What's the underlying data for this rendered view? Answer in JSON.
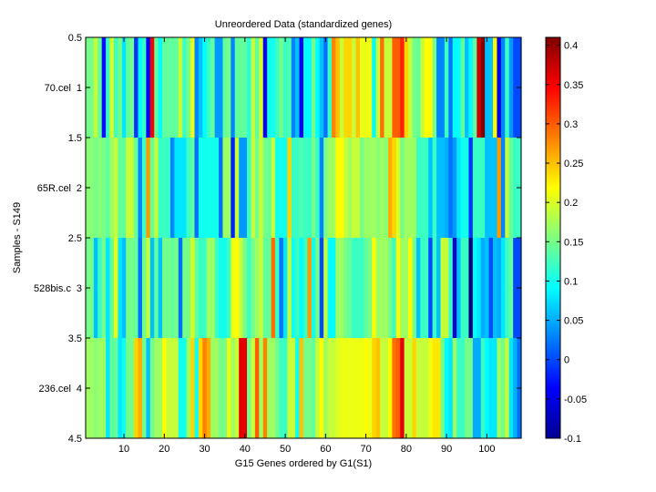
{
  "chart_data": {
    "type": "heatmap",
    "title": "Unreordered Data (standardized genes)",
    "xlabel": "G15 Genes ordered by G1(S1)",
    "ylabel": "Samples - S149",
    "xlim": [
      0.5,
      108.5
    ],
    "ylim": [
      0.5,
      4.5
    ],
    "x_ticks": [
      10,
      20,
      30,
      40,
      50,
      60,
      70,
      80,
      90,
      100
    ],
    "y_ticks": [
      "0.5",
      "1",
      "1.5",
      "2",
      "2.5",
      "3",
      "3.5",
      "4",
      "4.5"
    ],
    "y_tick_values": [
      0.5,
      1,
      1.5,
      2,
      2.5,
      3,
      3.5,
      4,
      4.5
    ],
    "row_labels": [
      "70.cel",
      "65R.cel",
      "528bis.c",
      "236.cel"
    ],
    "colormap": "jet",
    "clim": [
      -0.1,
      0.41
    ],
    "colorbar_ticks": [
      "-0.1",
      "-0.05",
      "0",
      "0.05",
      "0.1",
      "0.15",
      "0.2",
      "0.25",
      "0.3",
      "0.35",
      "0.4"
    ],
    "colorbar_tick_values": [
      -0.1,
      -0.05,
      0,
      0.05,
      0.1,
      0.15,
      0.2,
      0.25,
      0.3,
      0.35,
      0.4
    ],
    "values": [
      [
        0.15,
        0.15,
        0.19,
        0.14,
        -0.03,
        0.12,
        0.2,
        0.12,
        0.15,
        0.08,
        0.14,
        0.15,
        -0.01,
        0.09,
        0.12,
        -0.04,
        0.35,
        0.14,
        0.09,
        0.14,
        0.14,
        0.14,
        0.14,
        0.19,
        0.12,
        0.15,
        0.21,
        0.03,
        0.06,
        0.09,
        0.12,
        0.14,
        0.04,
        0.04,
        0.14,
        0.15,
        0.03,
        0.14,
        0.14,
        0.14,
        0.11,
        0.19,
        0.14,
        0.2,
        -0.04,
        0.1,
        0.1,
        0.12,
        0.15,
        0.12,
        0.13,
        0.03,
        0.06,
        -0.04,
        0.09,
        0.09,
        0.15,
        0.09,
        0.06,
        0.02,
        0.12,
        0.28,
        0.25,
        0.19,
        0.24,
        0.24,
        0.19,
        0.25,
        0.21,
        0.21,
        0.21,
        0.09,
        0.19,
        0.29,
        0.19,
        0.19,
        0.3,
        0.3,
        0.33,
        0.24,
        0.19,
        0.15,
        0.14,
        0.19,
        0.22,
        0.22,
        0.15,
        0.03,
        0.03,
        0.12,
        0.02,
        0.09,
        0.09,
        0.14,
        0.06,
        0.09,
        0.14,
        0.37,
        0.41,
        0.06,
        0.06,
        0.22,
        -0.05,
        0.03,
        0.12,
        0.04,
        0.0,
        0.0
      ],
      [
        0.16,
        0.16,
        0.15,
        0.16,
        0.15,
        0.14,
        0.17,
        0.19,
        0.14,
        0.14,
        0.19,
        0.19,
        0.14,
        0.03,
        0.12,
        0.27,
        0.14,
        0.19,
        0.12,
        0.12,
        0.12,
        0.03,
        0.08,
        0.08,
        0.08,
        0.12,
        0.14,
        0.02,
        0.1,
        0.1,
        0.1,
        0.1,
        0.1,
        0.02,
        0.17,
        0.17,
        -0.02,
        0.19,
        0.04,
        0.04,
        0.12,
        0.19,
        0.15,
        0.19,
        0.15,
        0.14,
        0.19,
        0.1,
        0.1,
        0.1,
        0.24,
        0.12,
        0.12,
        0.13,
        0.12,
        0.12,
        0.15,
        0.12,
        0.03,
        0.15,
        0.17,
        0.17,
        0.22,
        0.22,
        0.19,
        0.17,
        0.19,
        0.19,
        0.15,
        0.17,
        0.17,
        0.17,
        0.16,
        0.17,
        0.16,
        0.26,
        0.24,
        0.2,
        0.15,
        0.17,
        0.17,
        0.17,
        0.12,
        0.12,
        0.12,
        0.06,
        0.12,
        0.06,
        0.06,
        0.05,
        0.02,
        0.04,
        0.08,
        0.1,
        0.1,
        -0.01,
        0.12,
        0.12,
        0.12,
        0.06,
        0.06,
        0.06,
        0.27,
        0.03,
        0.19,
        0.14,
        0.12,
        0.12
      ],
      [
        0.15,
        0.15,
        0.06,
        0.12,
        0.15,
        0.08,
        0.14,
        0.21,
        0.08,
        0.06,
        0.15,
        0.15,
        0.14,
        0.02,
        0.15,
        0.19,
        0.06,
        0.14,
        0.06,
        0.15,
        0.15,
        0.14,
        0.15,
        0.02,
        0.15,
        0.15,
        0.2,
        0.14,
        0.12,
        0.12,
        0.17,
        0.17,
        0.12,
        0.1,
        0.1,
        0.12,
        0.21,
        0.22,
        0.19,
        0.15,
        0.12,
        0.15,
        0.17,
        0.19,
        0.14,
        0.14,
        0.29,
        0.12,
        0.02,
        0.08,
        0.19,
        0.1,
        0.12,
        0.09,
        0.12,
        0.27,
        0.1,
        0.15,
        0.0,
        0.19,
        0.09,
        0.09,
        0.17,
        0.17,
        0.15,
        0.14,
        0.12,
        0.12,
        0.12,
        0.14,
        0.15,
        0.22,
        0.17,
        0.17,
        0.17,
        0.15,
        0.12,
        0.22,
        0.17,
        0.17,
        0.22,
        0.15,
        0.06,
        0.12,
        0.12,
        0.0,
        0.12,
        0.06,
        0.19,
        0.19,
        0.12,
        -0.06,
        0.06,
        0.12,
        0.12,
        -0.1,
        0.09,
        0.08,
        0.05,
        0.06,
        0.0,
        0.06,
        0.05,
        0.08,
        0.12,
        0.14,
        0.0,
        0.0
      ],
      [
        0.17,
        0.17,
        0.16,
        0.17,
        0.17,
        0.08,
        0.14,
        0.14,
        0.08,
        0.1,
        0.15,
        0.15,
        0.24,
        0.26,
        0.15,
        0.06,
        0.15,
        0.17,
        0.17,
        0.22,
        0.19,
        0.19,
        0.19,
        0.1,
        0.1,
        0.17,
        0.24,
        0.1,
        0.24,
        0.28,
        0.26,
        0.17,
        0.17,
        0.15,
        0.15,
        0.21,
        0.17,
        0.19,
        0.36,
        0.36,
        0.15,
        0.19,
        0.3,
        0.17,
        0.28,
        0.17,
        0.17,
        0.15,
        0.12,
        0.12,
        0.19,
        0.19,
        0.1,
        0.25,
        0.15,
        0.15,
        0.14,
        0.19,
        0.22,
        0.17,
        0.19,
        0.19,
        0.2,
        0.21,
        0.21,
        0.21,
        0.21,
        0.21,
        0.21,
        0.22,
        0.21,
        0.24,
        0.25,
        0.19,
        0.19,
        0.22,
        0.29,
        0.3,
        0.36,
        0.19,
        0.19,
        0.24,
        0.19,
        0.19,
        0.19,
        0.21,
        0.23,
        0.23,
        0.15,
        0.09,
        0.08,
        0.17,
        0.12,
        0.12,
        0.15,
        0.15,
        0.05,
        0.05,
        0.12,
        0.09,
        0.08,
        0.08,
        0.17,
        0.15,
        0.19,
        0.08,
        0.05,
        0.02
      ]
    ]
  }
}
